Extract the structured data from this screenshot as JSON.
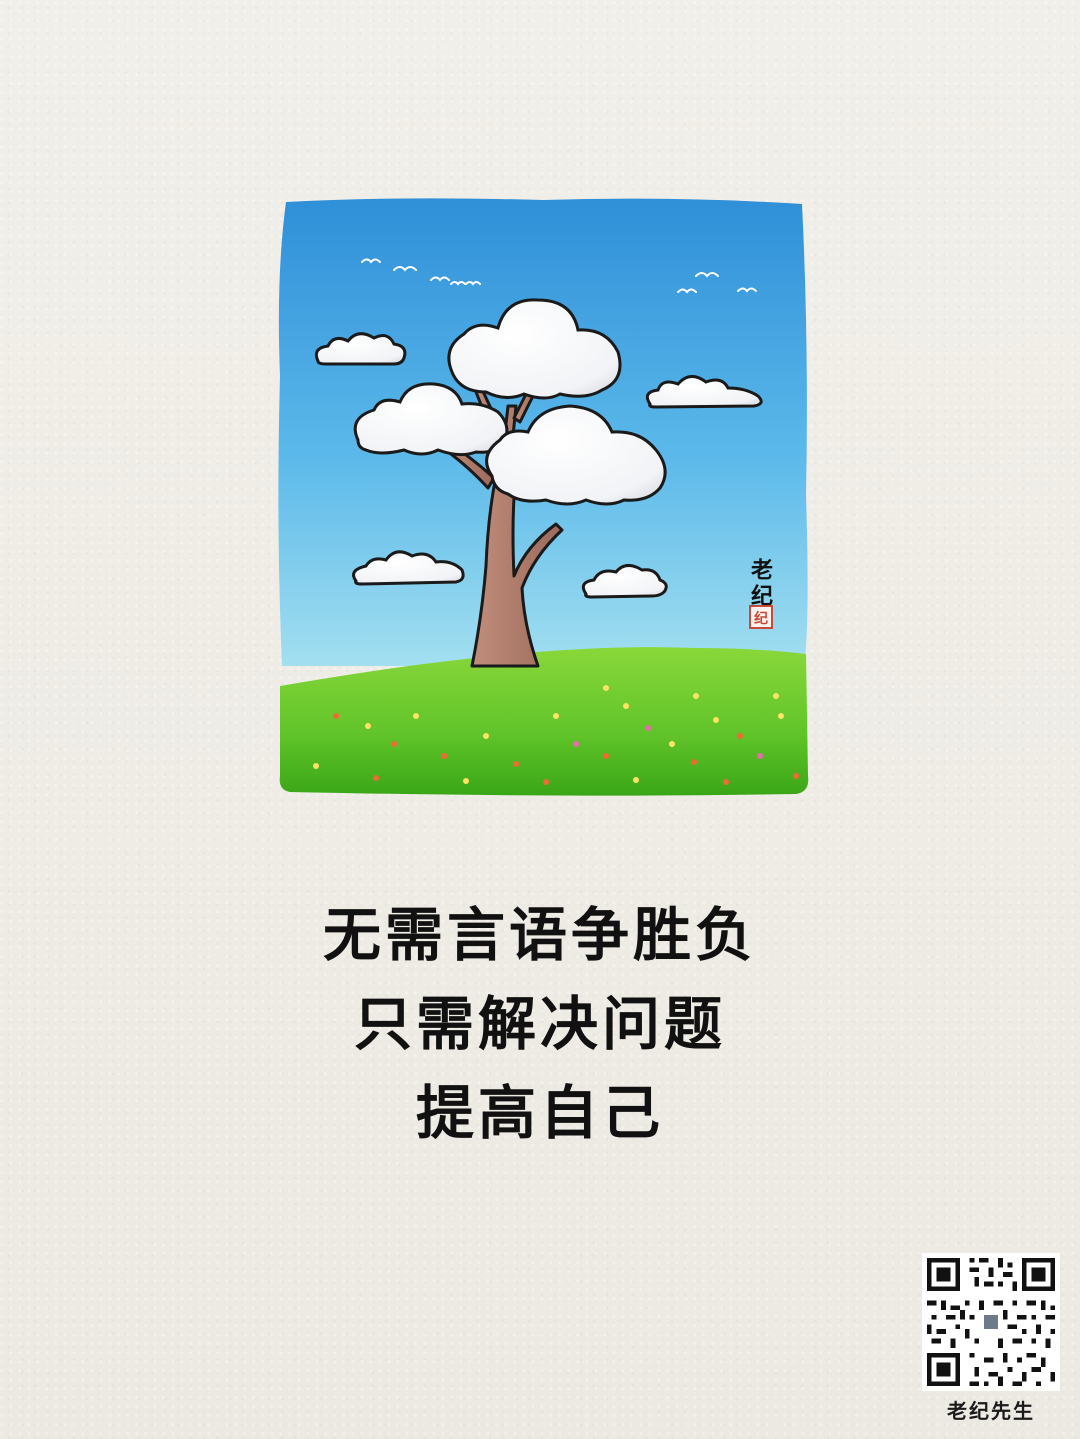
{
  "illustration": {
    "signature_text": "老纪",
    "seal_text": "纪",
    "colors": {
      "sky_top": "#2f8fd8",
      "sky_bottom": "#a3dff0",
      "grass_light": "#9be64a",
      "grass_dark": "#47b81d",
      "trunk": "#b07b6a",
      "cloud": "#ffffff",
      "seal": "#c84a38"
    }
  },
  "poem": {
    "line1": "无需言语争胜负",
    "line2": "只需解决问题",
    "line3": "提高自己"
  },
  "qr": {
    "label": "老纪先生",
    "icon": "qr-code-icon"
  }
}
